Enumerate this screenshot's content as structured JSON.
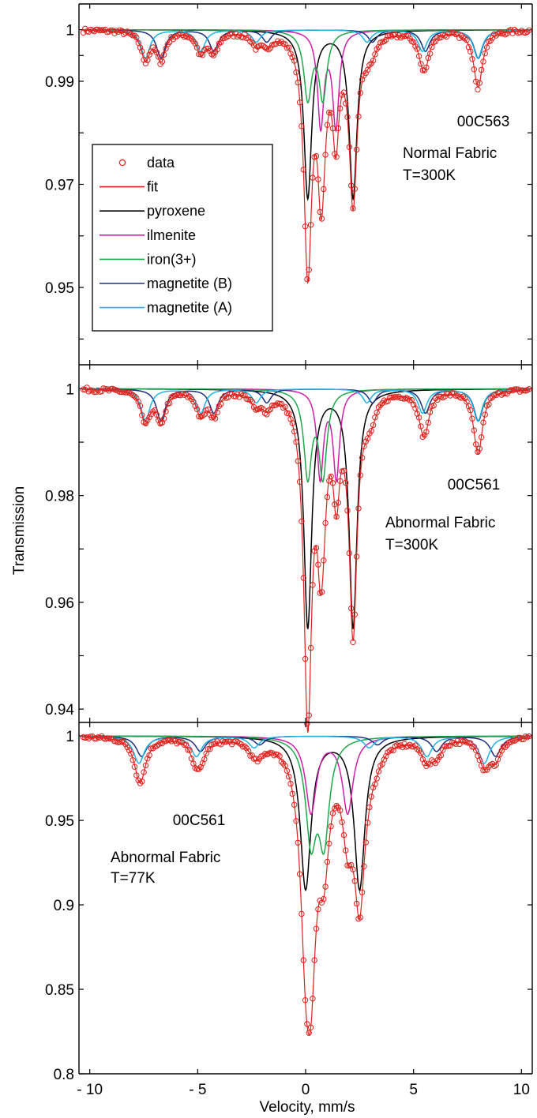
{
  "ylabel": "Transmission",
  "xlabel": "Velocity, mm/s",
  "x_ticks": [
    "- 10",
    "- 5",
    "0",
    "5",
    "10"
  ],
  "colors": {
    "data": "#e0201b",
    "fit": "#e0201b",
    "pyroxene": "#000000",
    "ilmenite": "#d21ea8",
    "iron3": "#1fa84a",
    "magnetiteB": "#1c2f7e",
    "magnetiteA": "#1eb4e6"
  },
  "legend": {
    "items": [
      {
        "key": "data",
        "label": "data",
        "type": "marker"
      },
      {
        "key": "fit",
        "label": "fit",
        "type": "line"
      },
      {
        "key": "pyroxene",
        "label": "pyroxene",
        "type": "line"
      },
      {
        "key": "ilmenite",
        "label": "ilmenite",
        "type": "line"
      },
      {
        "key": "iron3",
        "label": "iron(3+)",
        "type": "line"
      },
      {
        "key": "magnetiteB",
        "label": "magnetite (B)",
        "type": "line"
      },
      {
        "key": "magnetiteA",
        "label": "magnetite (A)",
        "type": "line"
      }
    ]
  },
  "chart_data": [
    {
      "type": "line",
      "panel": "top",
      "annotations": [
        "00C563",
        "Normal Fabric",
        "T=300K"
      ],
      "xlim": [
        -10.5,
        10.5
      ],
      "ylim": [
        0.935,
        1.005
      ],
      "y_ticks": [
        0.95,
        0.97,
        0.99,
        1
      ],
      "y_tick_labels": [
        "0.95",
        "0.97",
        "0.99",
        "1"
      ],
      "series": [
        {
          "name": "pyroxene",
          "type": "doublet",
          "center": 1.15,
          "split": 2.1,
          "depth": 0.0325,
          "hw": 0.22
        },
        {
          "name": "ilmenite",
          "type": "doublet",
          "center": 1.05,
          "split": 0.7,
          "depth": 0.0185,
          "hw": 0.18
        },
        {
          "name": "iron(3+)",
          "type": "doublet",
          "center": 0.45,
          "split": 0.7,
          "depth": 0.013,
          "hw": 0.22
        },
        {
          "name": "magnetite (B)",
          "type": "sextet",
          "center": 0.65,
          "Bhf": 14.7,
          "depth": 0.0055,
          "hw": 0.25
        },
        {
          "name": "magnetite (A)",
          "type": "sextet",
          "center": 0.28,
          "Bhf": 15.4,
          "depth": 0.0055,
          "hw": 0.25
        }
      ]
    },
    {
      "type": "line",
      "panel": "middle",
      "annotations": [
        "00C561",
        "Abnormal Fabric",
        "T=300K"
      ],
      "xlim": [
        -10.5,
        10.5
      ],
      "ylim": [
        0.9375,
        1.0045
      ],
      "y_ticks": [
        0.94,
        0.96,
        0.98,
        1
      ],
      "y_tick_labels": [
        "0.94",
        "0.96",
        "0.98",
        "1"
      ],
      "series": [
        {
          "name": "pyroxene",
          "type": "doublet",
          "center": 1.15,
          "split": 2.1,
          "depth": 0.0445,
          "hw": 0.22
        },
        {
          "name": "ilmenite",
          "type": "doublet",
          "center": 1.05,
          "split": 0.75,
          "depth": 0.0165,
          "hw": 0.18
        },
        {
          "name": "iron(3+)",
          "type": "doublet",
          "center": 0.45,
          "split": 0.7,
          "depth": 0.016,
          "hw": 0.22
        },
        {
          "name": "magnetite (B)",
          "type": "sextet",
          "center": 0.65,
          "Bhf": 14.7,
          "depth": 0.006,
          "hw": 0.25
        },
        {
          "name": "magnetite (A)",
          "type": "sextet",
          "center": 0.28,
          "Bhf": 15.4,
          "depth": 0.006,
          "hw": 0.25
        }
      ]
    },
    {
      "type": "line",
      "panel": "bottom",
      "annotations": [
        "00C561",
        "Abnormal Fabric",
        "T=77K"
      ],
      "xlim": [
        -10.5,
        10.5
      ],
      "ylim": [
        0.8,
        1.008
      ],
      "y_ticks": [
        0.8,
        0.85,
        0.9,
        0.95,
        1
      ],
      "y_tick_labels": [
        "0.8",
        "0.85",
        "0.9",
        "0.95",
        "1"
      ],
      "series": [
        {
          "name": "pyroxene",
          "type": "doublet",
          "center": 1.25,
          "split": 2.5,
          "depth": 0.09,
          "hw": 0.3
        },
        {
          "name": "ilmenite",
          "type": "doublet",
          "center": 1.1,
          "split": 1.7,
          "depth": 0.045,
          "hw": 0.3
        },
        {
          "name": "iron(3+)",
          "type": "doublet",
          "center": 0.55,
          "split": 0.6,
          "depth": 0.058,
          "hw": 0.3
        },
        {
          "name": "magnetite (B)",
          "type": "sextet",
          "center": 0.6,
          "Bhf": 16.4,
          "depth": 0.012,
          "hw": 0.3
        },
        {
          "name": "magnetite (A)",
          "type": "sextet",
          "center": 0.28,
          "Bhf": 16.0,
          "depth": 0.016,
          "hw": 0.3
        }
      ]
    }
  ]
}
